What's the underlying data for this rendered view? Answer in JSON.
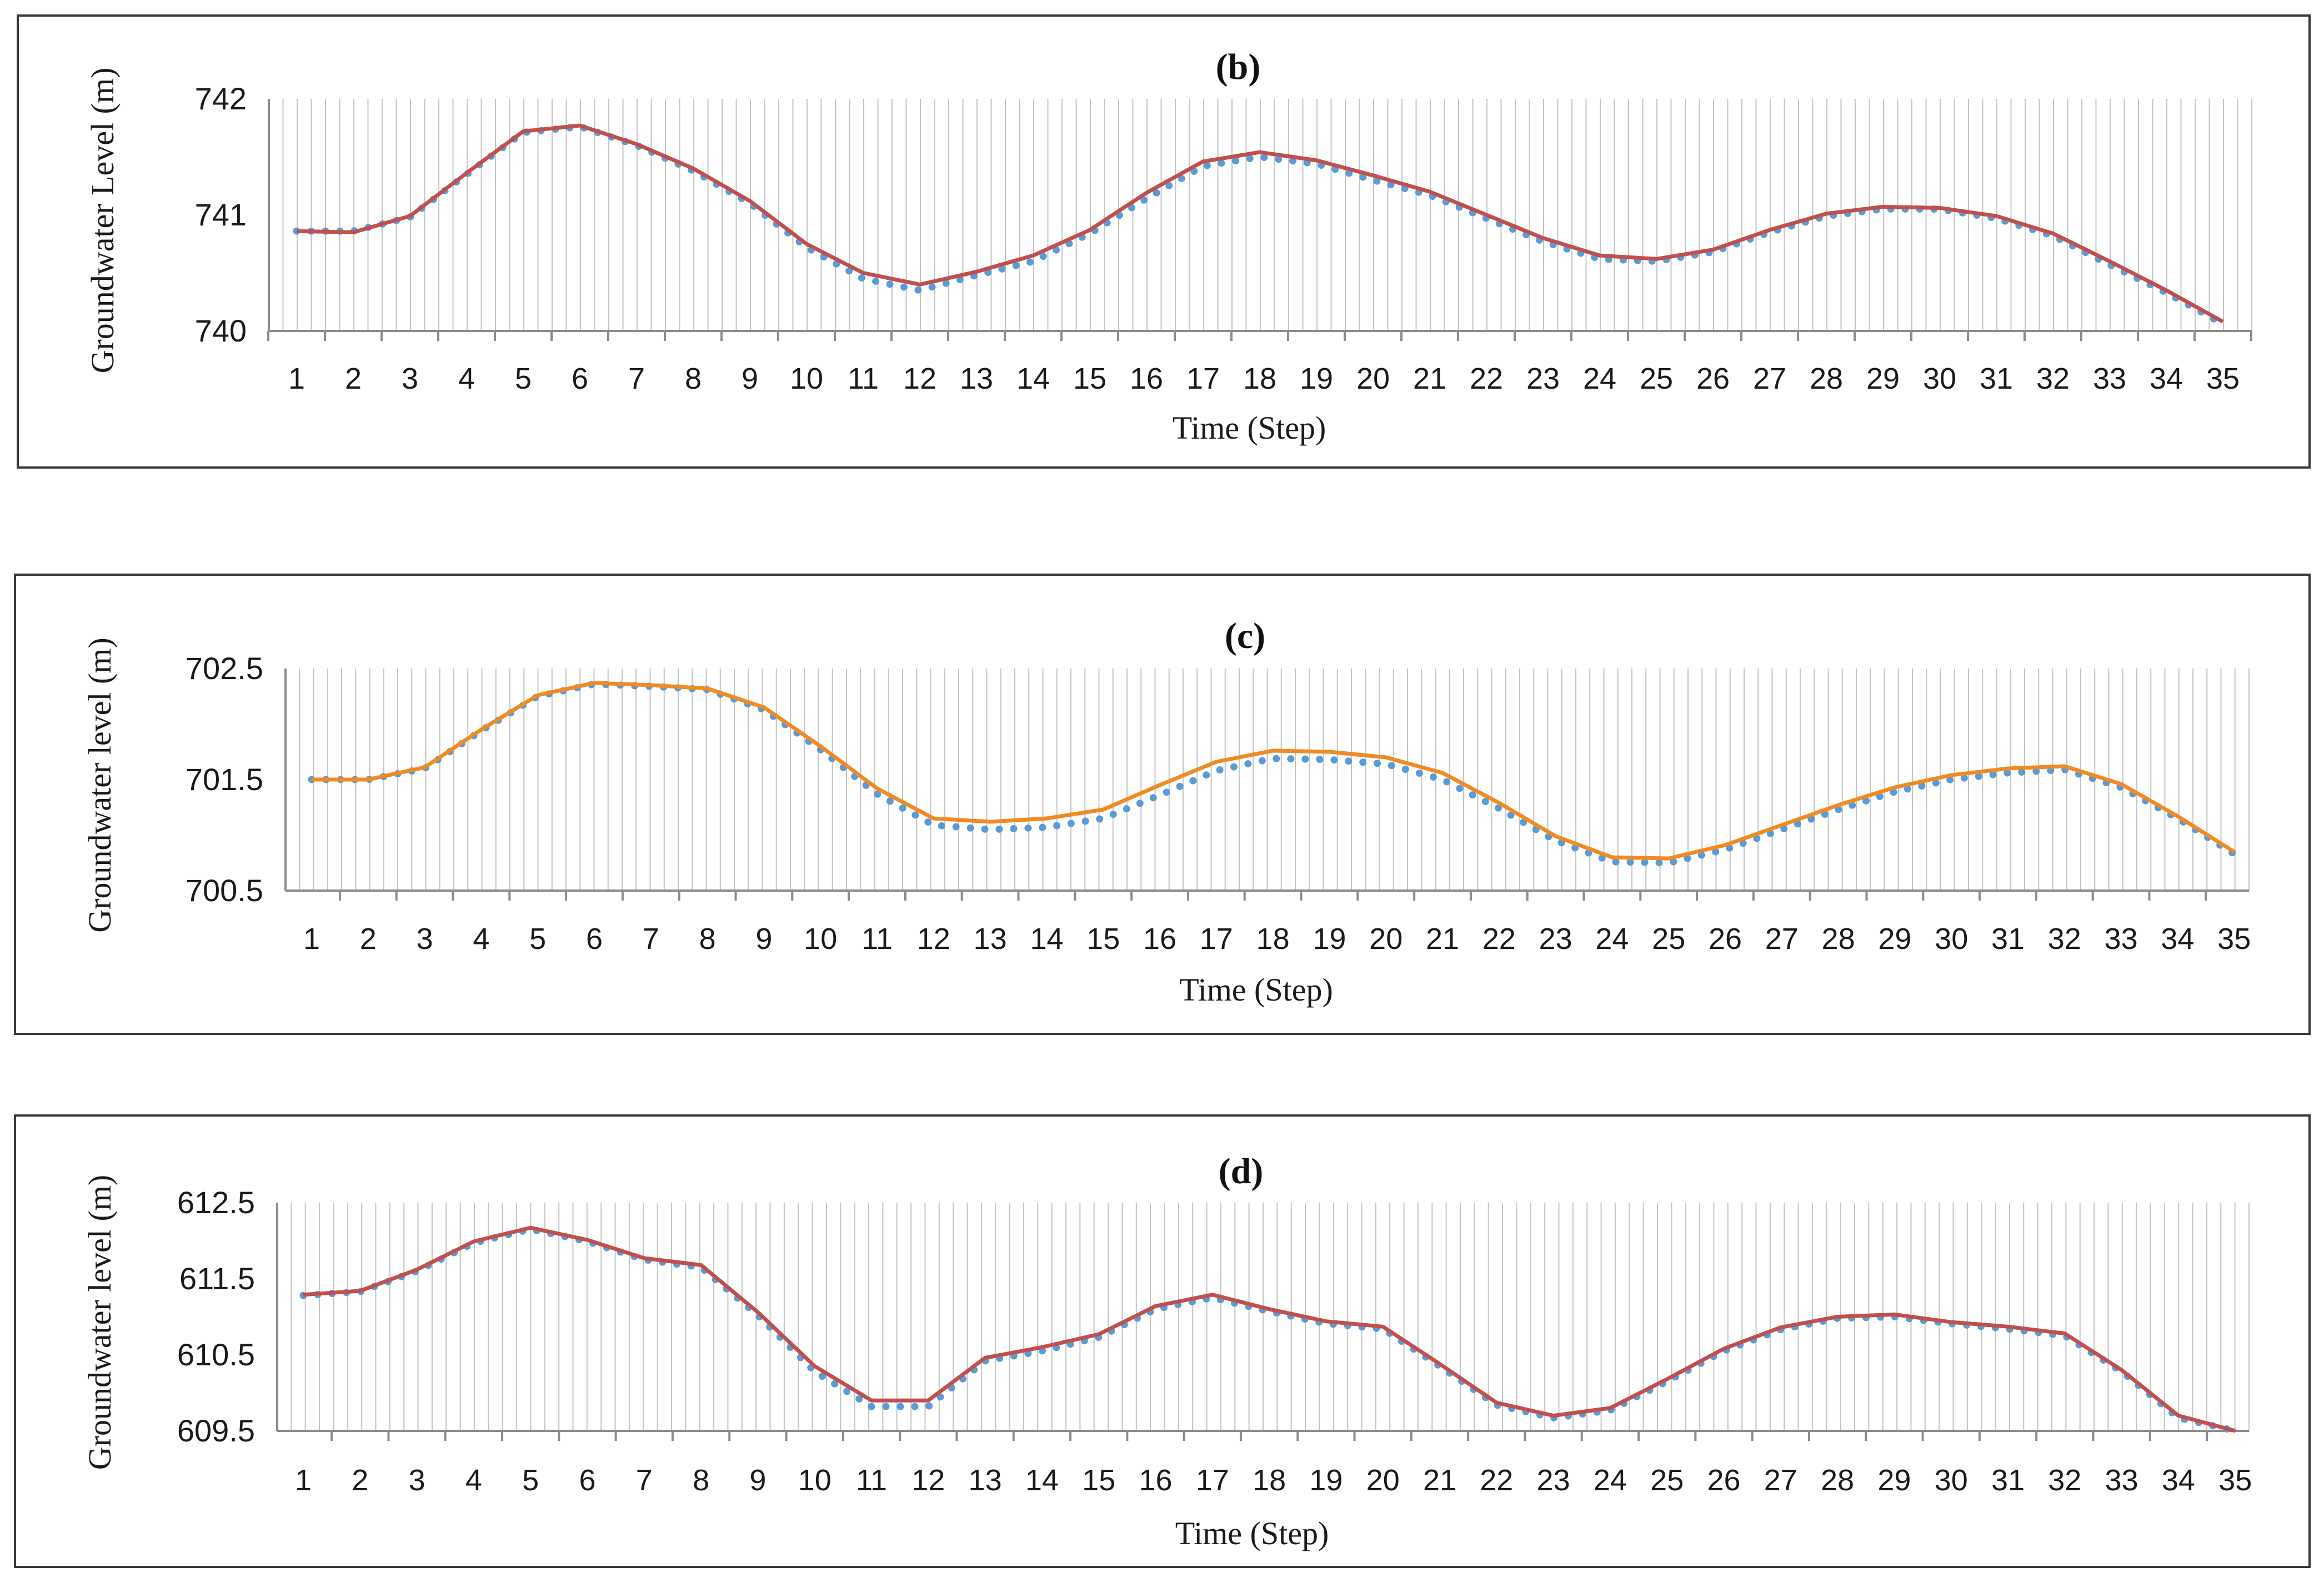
{
  "chart_data": [
    {
      "type": "line",
      "panel": "b",
      "title": "(b)",
      "xlabel": "Time (Step)",
      "ylabel": "Groundwater Level (m)",
      "ylim": [
        740,
        742
      ],
      "yticks": [
        "740",
        "741",
        "742"
      ],
      "grid": "vertical minor lines",
      "categories": [
        "1",
        "2",
        "3",
        "4",
        "5",
        "6",
        "7",
        "8",
        "9",
        "10",
        "11",
        "12",
        "13",
        "14",
        "15",
        "16",
        "17",
        "18",
        "19",
        "20",
        "21",
        "22",
        "23",
        "24",
        "25",
        "26",
        "27",
        "28",
        "29",
        "30",
        "31",
        "32",
        "33",
        "34",
        "35"
      ],
      "series": [
        {
          "style": "dotted",
          "color": "#5b9bd5",
          "values": [
            740.86,
            740.86,
            740.98,
            741.35,
            741.71,
            741.76,
            741.6,
            741.38,
            741.1,
            740.72,
            740.45,
            740.35,
            740.48,
            740.6,
            740.84,
            741.14,
            741.42,
            741.5,
            741.44,
            741.3,
            741.17,
            740.97,
            740.77,
            740.62,
            740.6,
            740.68,
            740.85,
            740.99,
            741.05,
            741.05,
            740.97,
            740.82,
            740.57,
            740.33,
            740.06
          ]
        },
        {
          "style": "solid",
          "color": "#c0504d",
          "values": [
            740.86,
            740.85,
            740.99,
            741.36,
            741.72,
            741.77,
            741.61,
            741.4,
            741.12,
            740.75,
            740.5,
            740.4,
            740.51,
            740.65,
            740.87,
            741.19,
            741.46,
            741.54,
            741.47,
            741.34,
            741.2,
            741.0,
            740.8,
            740.65,
            740.62,
            740.7,
            740.87,
            741.01,
            741.07,
            741.06,
            740.99,
            740.84,
            740.6,
            740.35,
            740.08
          ]
        }
      ]
    },
    {
      "type": "line",
      "panel": "c",
      "title": "(c)",
      "xlabel": "Time (Step)",
      "ylabel": "Groundwater level (m)",
      "ylim": [
        700.5,
        702.5
      ],
      "yticks": [
        "700.5",
        "701.5",
        "702.5"
      ],
      "grid": "vertical minor lines",
      "categories": [
        "1",
        "2",
        "3",
        "4",
        "5",
        "6",
        "7",
        "8",
        "9",
        "10",
        "11",
        "12",
        "13",
        "14",
        "15",
        "16",
        "17",
        "18",
        "19",
        "20",
        "21",
        "22",
        "23",
        "24",
        "25",
        "26",
        "27",
        "28",
        "29",
        "30",
        "31",
        "32",
        "33",
        "34",
        "35"
      ],
      "series": [
        {
          "style": "dotted",
          "color": "#5b9bd5",
          "values": [
            701.5,
            701.5,
            701.6,
            701.94,
            702.25,
            702.36,
            702.34,
            702.31,
            702.13,
            701.77,
            701.37,
            701.09,
            701.05,
            701.07,
            701.15,
            701.36,
            701.58,
            701.69,
            701.68,
            701.64,
            701.5,
            701.24,
            700.95,
            700.76,
            700.75,
            700.87,
            701.05,
            701.23,
            701.39,
            701.5,
            701.56,
            701.59,
            701.43,
            701.15,
            700.83
          ]
        },
        {
          "style": "solid",
          "color": "#f08a24",
          "values": [
            701.5,
            701.5,
            701.61,
            701.95,
            702.26,
            702.37,
            702.35,
            702.32,
            702.15,
            701.8,
            701.42,
            701.15,
            701.12,
            701.15,
            701.23,
            701.45,
            701.66,
            701.76,
            701.75,
            701.7,
            701.56,
            701.29,
            700.99,
            700.8,
            700.79,
            700.91,
            701.09,
            701.27,
            701.43,
            701.54,
            701.6,
            701.62,
            701.46,
            701.17,
            700.85
          ]
        }
      ]
    },
    {
      "type": "line",
      "panel": "d",
      "title": "(d)",
      "xlabel": "Time (Step)",
      "ylabel": "Groundwater level (m)",
      "ylim": [
        609.5,
        612.5
      ],
      "yticks": [
        "609.5",
        "610.5",
        "611.5",
        "612.5"
      ],
      "grid": "vertical minor lines",
      "categories": [
        "1",
        "2",
        "3",
        "4",
        "5",
        "6",
        "7",
        "8",
        "9",
        "10",
        "11",
        "12",
        "13",
        "14",
        "15",
        "16",
        "17",
        "18",
        "19",
        "20",
        "21",
        "22",
        "23",
        "24",
        "25",
        "26",
        "27",
        "28",
        "29",
        "30",
        "31",
        "32",
        "33",
        "34",
        "35"
      ],
      "series": [
        {
          "style": "dotted",
          "color": "#5b9bd5",
          "values": [
            611.28,
            611.33,
            611.6,
            611.97,
            612.15,
            611.99,
            611.75,
            611.65,
            611.02,
            610.28,
            609.82,
            609.82,
            610.42,
            610.55,
            610.73,
            611.1,
            611.25,
            611.07,
            610.91,
            610.84,
            610.35,
            609.84,
            609.67,
            609.77,
            610.15,
            610.55,
            610.83,
            610.98,
            611.0,
            610.91,
            610.84,
            610.75,
            610.28,
            609.67,
            609.5
          ]
        },
        {
          "style": "solid",
          "color": "#c0504d",
          "values": [
            611.29,
            611.34,
            611.62,
            611.99,
            612.17,
            612.01,
            611.77,
            611.68,
            611.06,
            610.35,
            609.9,
            609.9,
            610.46,
            610.6,
            610.77,
            611.14,
            611.29,
            611.1,
            610.94,
            610.87,
            610.38,
            609.87,
            609.7,
            609.8,
            610.18,
            610.58,
            610.86,
            611.0,
            611.03,
            610.93,
            610.87,
            610.78,
            610.3,
            609.7,
            609.5
          ]
        }
      ]
    }
  ]
}
